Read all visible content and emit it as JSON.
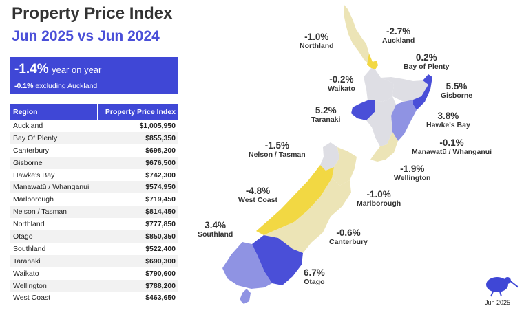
{
  "header": {
    "title": "Property Price Index",
    "subtitle": "Jun 2025 vs Jun 2024"
  },
  "summary": {
    "yoy_value": "-1.4%",
    "yoy_label": "year on year",
    "excl_value": "-0.1%",
    "excl_label": "excluding Auckland"
  },
  "table": {
    "headers": [
      "Region",
      "Property Price Index"
    ],
    "rows": [
      [
        "Auckland",
        "$1,005,950"
      ],
      [
        "Bay Of Plenty",
        "$855,350"
      ],
      [
        "Canterbury",
        "$698,200"
      ],
      [
        "Gisborne",
        "$676,500"
      ],
      [
        "Hawke's Bay",
        "$742,300"
      ],
      [
        "Manawatū / Whanganui",
        "$574,950"
      ],
      [
        "Marlborough",
        "$719,450"
      ],
      [
        "Nelson / Tasman",
        "$814,450"
      ],
      [
        "Northland",
        "$777,850"
      ],
      [
        "Otago",
        "$850,350"
      ],
      [
        "Southland",
        "$522,400"
      ],
      [
        "Taranaki",
        "$690,300"
      ],
      [
        "Waikato",
        "$790,600"
      ],
      [
        "Wellington",
        "$788,200"
      ],
      [
        "West Coast",
        "$463,650"
      ]
    ]
  },
  "map_labels": [
    {
      "id": "northland",
      "pct": "-1.0%",
      "name": "Northland"
    },
    {
      "id": "auckland",
      "pct": "-2.7%",
      "name": "Auckland"
    },
    {
      "id": "bay-of-plenty",
      "pct": "0.2%",
      "name": "Bay of Plenty"
    },
    {
      "id": "waikato",
      "pct": "-0.2%",
      "name": "Waikato"
    },
    {
      "id": "gisborne",
      "pct": "5.5%",
      "name": "Gisborne"
    },
    {
      "id": "taranaki",
      "pct": "5.2%",
      "name": "Taranaki"
    },
    {
      "id": "hawkes-bay",
      "pct": "3.8%",
      "name": "Hawke's Bay"
    },
    {
      "id": "nelson-tasman",
      "pct": "-1.5%",
      "name": "Nelson / Tasman"
    },
    {
      "id": "manawatu",
      "pct": "-0.1%",
      "name": "Manawatū / Whanganui"
    },
    {
      "id": "wellington",
      "pct": "-1.9%",
      "name": "Wellington"
    },
    {
      "id": "west-coast",
      "pct": "-4.8%",
      "name": "West Coast"
    },
    {
      "id": "marlborough",
      "pct": "-1.0%",
      "name": "Marlborough"
    },
    {
      "id": "southland",
      "pct": "3.4%",
      "name": "Southland"
    },
    {
      "id": "canterbury",
      "pct": "-0.6%",
      "name": "Canterbury"
    },
    {
      "id": "otago",
      "pct": "6.7%",
      "name": "Otago"
    }
  ],
  "footer": {
    "date": "Jun 2025",
    "logo_icon": "kiwi-bird-icon"
  },
  "colors": {
    "accent": "#3f47d6",
    "increase_strong": "#4a4fd8",
    "increase_light": "#8f93e3",
    "decrease_strong": "#f2d843",
    "decrease_light": "#ece4b6",
    "neutral": "#dedee4"
  }
}
